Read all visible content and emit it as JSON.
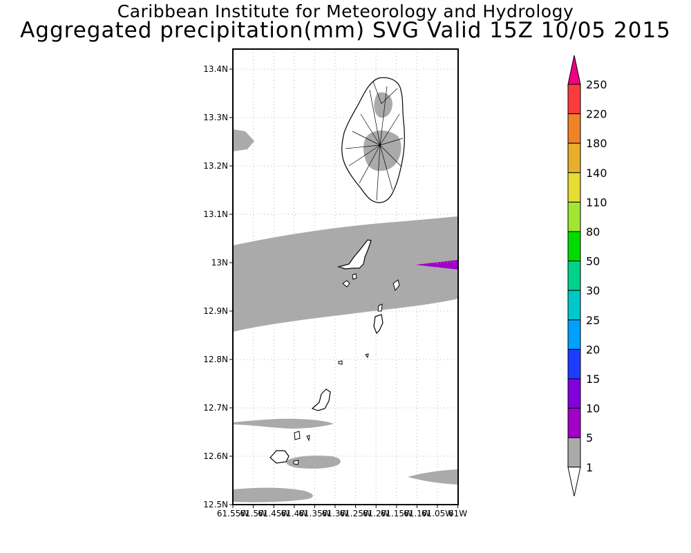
{
  "header": {
    "institute": "Caribbean Institute for Meteorology and Hydrology",
    "product": "Aggregated precipitation(mm) SVG Valid 15Z 10/05 2015"
  },
  "map": {
    "lat_labels": [
      "13.4N",
      "13.3N",
      "13.2N",
      "13.1N",
      "13N",
      "12.9N",
      "12.8N",
      "12.7N",
      "12.6N",
      "12.5N"
    ],
    "lon_labels": [
      "61.55W",
      "61.5W",
      "61.45W",
      "61.4W",
      "61.35W",
      "61.3W",
      "61.25W",
      "61.2W",
      "61.15W",
      "61.1W",
      "61.05W",
      "61W"
    ],
    "precip_fill_color": "#aaaaaa",
    "precip_high_color": "#a000c8"
  },
  "colorbar": {
    "levels": [
      {
        "label": "250",
        "color": "#f00082"
      },
      {
        "label": "220",
        "color": "#fa3c3c"
      },
      {
        "label": "180",
        "color": "#f08228"
      },
      {
        "label": "140",
        "color": "#e6af2d"
      },
      {
        "label": "110",
        "color": "#e6dc32"
      },
      {
        "label": "80",
        "color": "#a0e632"
      },
      {
        "label": "50",
        "color": "#00dc00"
      },
      {
        "label": "30",
        "color": "#00d28c"
      },
      {
        "label": "25",
        "color": "#00c8c8"
      },
      {
        "label": "20",
        "color": "#00a0ff"
      },
      {
        "label": "15",
        "color": "#1e3cff"
      },
      {
        "label": "10",
        "color": "#8200dc"
      },
      {
        "label": "5",
        "color": "#a000c8"
      },
      {
        "label": "1",
        "color": "#aaaaaa"
      }
    ],
    "bottom_cap_color": "#ffffff"
  }
}
